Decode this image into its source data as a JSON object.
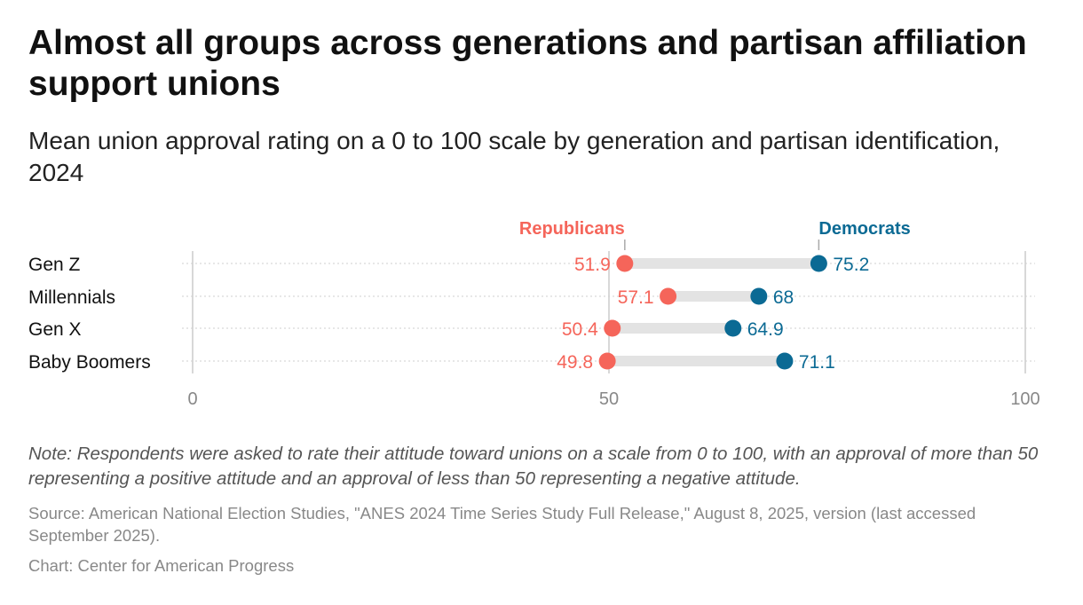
{
  "title": "Almost all groups across generations and partisan affiliation support unions",
  "subtitle": "Mean union approval rating on a 0 to 100 scale by generation and partisan identification, 2024",
  "note": "Note: Respondents were asked to rate their attitude toward unions on a scale from 0 to 100, with an approval of more than 50 representing a positive attitude and an approval of less than 50 representing a negative attitude.",
  "source": "Source: American National Election Studies, \"ANES 2024 Time Series Study Full Release,\" August 8, 2025, version (last accessed September 2025).",
  "credit": "Chart: Center for American Progress",
  "chart_data": {
    "type": "dot-range",
    "categories": [
      "Gen Z",
      "Millennials",
      "Gen X",
      "Baby Boomers"
    ],
    "series": [
      {
        "name": "Republicans",
        "color": "#f5655a",
        "values": [
          51.9,
          57.1,
          50.4,
          49.8
        ]
      },
      {
        "name": "Democrats",
        "color": "#0b6a94",
        "values": [
          75.2,
          68,
          64.9,
          71.1
        ]
      }
    ],
    "xlim": [
      0,
      100
    ],
    "xticks": [
      "0",
      "50",
      "100"
    ],
    "grid": true,
    "legend": "top, labels above first row"
  }
}
